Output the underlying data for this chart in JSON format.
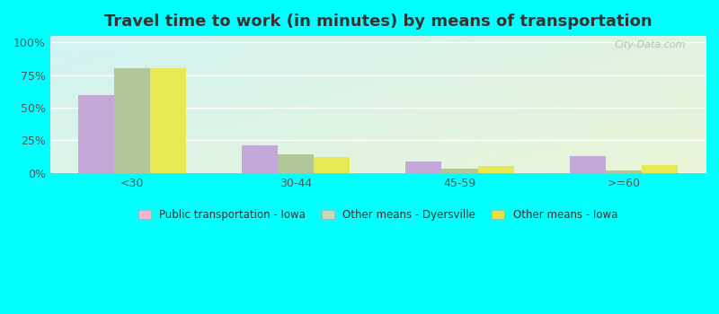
{
  "title": "Travel time to work (in minutes) by means of transportation",
  "categories": [
    "<30",
    "30-44",
    "45-59",
    ">=60"
  ],
  "series": {
    "Public transportation - Iowa": [
      60,
      21,
      9,
      13
    ],
    "Other means - Dyersville": [
      80,
      14,
      3,
      2
    ],
    "Other means - Iowa": [
      80,
      12,
      5,
      6
    ]
  },
  "colors": {
    "Public transportation - Iowa": "#c4a8d8",
    "Other means - Dyersville": "#b0c898",
    "Other means - Iowa": "#e8e855"
  },
  "legend_marker_colors": {
    "Public transportation - Iowa": "#f0b8d0",
    "Other means - Dyersville": "#c8d8b8",
    "Other means - Iowa": "#e8e040"
  },
  "yticks": [
    0,
    25,
    50,
    75,
    100
  ],
  "ytick_labels": [
    "0%",
    "25%",
    "50%",
    "75%",
    "100%"
  ],
  "ylim": [
    0,
    105
  ],
  "background_color": "#00ffff",
  "bar_width": 0.22,
  "title_fontsize": 13,
  "watermark": "City-Data.com"
}
